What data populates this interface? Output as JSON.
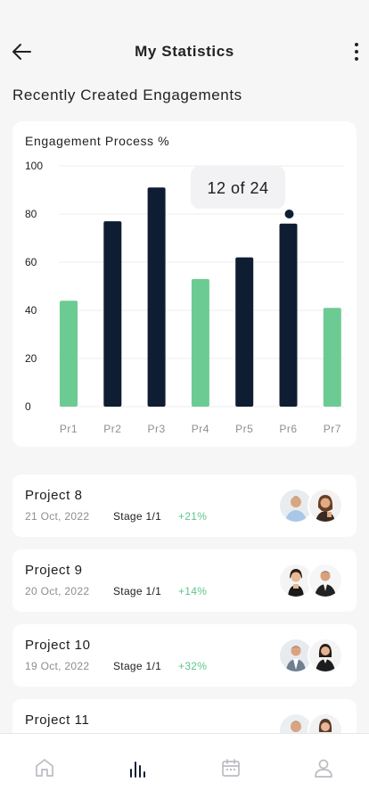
{
  "header": {
    "title": "My Statistics"
  },
  "section": {
    "title": "Recently Created Engagements"
  },
  "chart_data": {
    "type": "bar",
    "title": "Engagement Process %",
    "categories": [
      "Pr1",
      "Pr2",
      "Pr3",
      "Pr4",
      "Pr5",
      "Pr6",
      "Pr7"
    ],
    "values": [
      44,
      77,
      91,
      53,
      62,
      76,
      41
    ],
    "highlight": [
      false,
      true,
      true,
      false,
      true,
      true,
      false
    ],
    "yticks": [
      0,
      20,
      40,
      60,
      80,
      100
    ],
    "ylim": [
      0,
      100
    ],
    "grid": true,
    "tooltip": {
      "text": "12 of 24",
      "category": "Pr6",
      "marker_value": 80
    },
    "colors": {
      "highlight": "#0f1d33",
      "normal": "#6ccb93"
    }
  },
  "projects": [
    {
      "title": "Project 8",
      "date": "21 Oct, 2022",
      "stage": "Stage 1/1",
      "growth": "+21%"
    },
    {
      "title": "Project 9",
      "date": "20 Oct, 2022",
      "stage": "Stage 1/1",
      "growth": "+14%"
    },
    {
      "title": "Project 10",
      "date": "19 Oct, 2022",
      "stage": "Stage 1/1",
      "growth": "+32%"
    },
    {
      "title": "Project 11",
      "date": "",
      "stage": "",
      "growth": ""
    }
  ],
  "nav": [
    {
      "icon": "home-icon",
      "active": false
    },
    {
      "icon": "statistics-icon",
      "active": true
    },
    {
      "icon": "calendar-icon",
      "active": false
    },
    {
      "icon": "profile-icon",
      "active": false
    }
  ]
}
